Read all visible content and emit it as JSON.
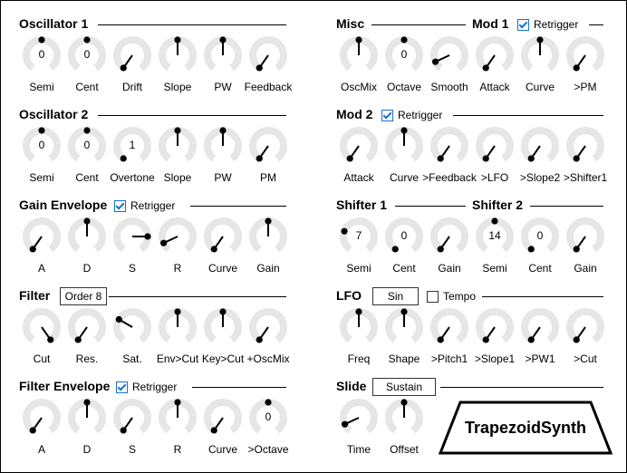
{
  "sections": [
    {
      "id": "osc1",
      "title": "Oscillator 1"
    },
    {
      "id": "osc2",
      "title": "Oscillator 2"
    },
    {
      "id": "gainenv",
      "title": "Gain Envelope"
    },
    {
      "id": "filter",
      "title": "Filter"
    },
    {
      "id": "filterenv",
      "title": "Filter Envelope"
    },
    {
      "id": "misc",
      "title": "Misc"
    },
    {
      "id": "mod1",
      "title": "Mod 1"
    },
    {
      "id": "mod2",
      "title": "Mod 2"
    },
    {
      "id": "shifter1",
      "title": "Shifter 1"
    },
    {
      "id": "shifter2",
      "title": "Shifter 2"
    },
    {
      "id": "lfo",
      "title": "LFO"
    },
    {
      "id": "slide",
      "title": "Slide"
    }
  ],
  "checkboxes": [
    {
      "id": "mod1-retrigger",
      "label": "Retrigger",
      "checked": true
    },
    {
      "id": "mod2-retrigger",
      "label": "Retrigger",
      "checked": true
    },
    {
      "id": "gainenv-retrigger",
      "label": "Retrigger",
      "checked": true
    },
    {
      "id": "filterenv-retrigger",
      "label": "Retrigger",
      "checked": true
    },
    {
      "id": "lfo-tempo",
      "label": "Tempo",
      "checked": false
    }
  ],
  "dropdowns": [
    {
      "id": "filter-type",
      "value": "Order 8"
    },
    {
      "id": "lfo-wave",
      "value": "Sin"
    },
    {
      "id": "slide-mode",
      "value": "Sustain"
    }
  ],
  "logo": {
    "text": "TrapezoidSynth"
  },
  "knobs": [
    {
      "id": "osc1-semi",
      "label": "Semi",
      "angle": 0,
      "value": "0"
    },
    {
      "id": "osc1-cent",
      "label": "Cent",
      "angle": 0,
      "value": "0"
    },
    {
      "id": "osc1-drift",
      "label": "Drift",
      "angle": -145,
      "value": ""
    },
    {
      "id": "osc1-slope",
      "label": "Slope",
      "angle": 0,
      "value": ""
    },
    {
      "id": "osc1-pw",
      "label": "PW",
      "angle": 0,
      "value": ""
    },
    {
      "id": "osc1-feedback",
      "label": "Feedback",
      "angle": -145,
      "value": ""
    },
    {
      "id": "osc2-semi",
      "label": "Semi",
      "angle": 0,
      "value": "0"
    },
    {
      "id": "osc2-cent",
      "label": "Cent",
      "angle": 0,
      "value": "0"
    },
    {
      "id": "osc2-overtone",
      "label": "Overtone",
      "angle": -145,
      "value": "1"
    },
    {
      "id": "osc2-slope",
      "label": "Slope",
      "angle": 0,
      "value": ""
    },
    {
      "id": "osc2-pw",
      "label": "PW",
      "angle": 0,
      "value": ""
    },
    {
      "id": "osc2-pm",
      "label": "PM",
      "angle": -145,
      "value": ""
    },
    {
      "id": "genv-a",
      "label": "A",
      "angle": -145,
      "value": ""
    },
    {
      "id": "genv-d",
      "label": "D",
      "angle": 0,
      "value": ""
    },
    {
      "id": "genv-s",
      "label": "S",
      "angle": 90,
      "value": ""
    },
    {
      "id": "genv-r",
      "label": "R",
      "angle": -115,
      "value": ""
    },
    {
      "id": "genv-curve",
      "label": "Curve",
      "angle": -145,
      "value": ""
    },
    {
      "id": "genv-gain",
      "label": "Gain",
      "angle": 0,
      "value": ""
    },
    {
      "id": "filter-cut",
      "label": "Cut",
      "angle": 145,
      "value": ""
    },
    {
      "id": "filter-res",
      "label": "Res.",
      "angle": -145,
      "value": ""
    },
    {
      "id": "filter-sat",
      "label": "Sat.",
      "angle": -60,
      "value": ""
    },
    {
      "id": "filter-envcut",
      "label": "Env>Cut",
      "angle": 0,
      "value": ""
    },
    {
      "id": "filter-keycut",
      "label": "Key>Cut",
      "angle": 0,
      "value": ""
    },
    {
      "id": "filter-oscmix",
      "label": "+OscMix",
      "angle": -145,
      "value": ""
    },
    {
      "id": "fenv-a",
      "label": "A",
      "angle": -145,
      "value": ""
    },
    {
      "id": "fenv-d",
      "label": "D",
      "angle": 0,
      "value": ""
    },
    {
      "id": "fenv-s",
      "label": "S",
      "angle": -145,
      "value": ""
    },
    {
      "id": "fenv-r",
      "label": "R",
      "angle": 0,
      "value": ""
    },
    {
      "id": "fenv-curve",
      "label": "Curve",
      "angle": -145,
      "value": ""
    },
    {
      "id": "fenv-octave",
      "label": ">Octave",
      "angle": 0,
      "value": "0"
    },
    {
      "id": "misc-oscmix",
      "label": "OscMix",
      "angle": 0,
      "value": ""
    },
    {
      "id": "misc-octave",
      "label": "Octave",
      "angle": 0,
      "value": "0"
    },
    {
      "id": "misc-smooth",
      "label": "Smooth",
      "angle": -115,
      "value": ""
    },
    {
      "id": "mod1-attack",
      "label": "Attack",
      "angle": -145,
      "value": ""
    },
    {
      "id": "mod1-curve",
      "label": "Curve",
      "angle": 0,
      "value": ""
    },
    {
      "id": "mod1-pm",
      "label": ">PM",
      "angle": -145,
      "value": ""
    },
    {
      "id": "mod2-attack",
      "label": "Attack",
      "angle": -145,
      "value": ""
    },
    {
      "id": "mod2-curve",
      "label": "Curve",
      "angle": 0,
      "value": ""
    },
    {
      "id": "mod2-feedback",
      "label": ">Feedback",
      "angle": -145,
      "value": ""
    },
    {
      "id": "mod2-lfo",
      "label": ">LFO",
      "angle": -145,
      "value": ""
    },
    {
      "id": "mod2-slope2",
      "label": ">Slope2",
      "angle": -145,
      "value": ""
    },
    {
      "id": "mod2-shifter1",
      "label": ">Shifter1",
      "angle": -145,
      "value": ""
    },
    {
      "id": "sh1-semi",
      "label": "Semi",
      "angle": -70,
      "value": "7"
    },
    {
      "id": "sh1-cent",
      "label": "Cent",
      "angle": -145,
      "value": "0"
    },
    {
      "id": "sh1-gain",
      "label": "Gain",
      "angle": -145,
      "value": ""
    },
    {
      "id": "sh2-semi",
      "label": "Semi",
      "angle": 0,
      "value": "14"
    },
    {
      "id": "sh2-cent",
      "label": "Cent",
      "angle": -145,
      "value": "0"
    },
    {
      "id": "sh2-gain",
      "label": "Gain",
      "angle": -145,
      "value": ""
    },
    {
      "id": "lfo-freq",
      "label": "Freq",
      "angle": 0,
      "value": ""
    },
    {
      "id": "lfo-shape",
      "label": "Shape",
      "angle": 0,
      "value": ""
    },
    {
      "id": "lfo-pitch1",
      "label": ">Pitch1",
      "angle": -145,
      "value": ""
    },
    {
      "id": "lfo-slope1",
      "label": ">Slope1",
      "angle": -145,
      "value": ""
    },
    {
      "id": "lfo-pw1",
      "label": ">PW1",
      "angle": -145,
      "value": ""
    },
    {
      "id": "lfo-cut",
      "label": ">Cut",
      "angle": -145,
      "value": ""
    },
    {
      "id": "slide-time",
      "label": "Time",
      "angle": -115,
      "value": ""
    },
    {
      "id": "slide-offset",
      "label": "Offset",
      "angle": 0,
      "value": ""
    }
  ]
}
